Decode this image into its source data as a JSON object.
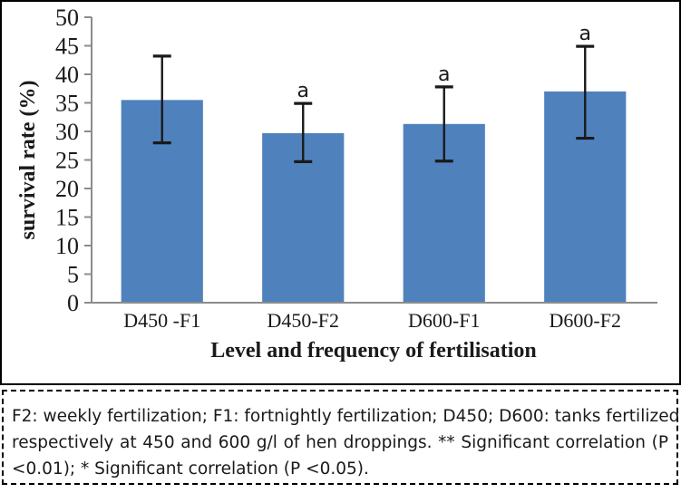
{
  "figure": {
    "chart_data": {
      "type": "bar",
      "title": "",
      "xlabel": "Level and frequency of fertilisation",
      "ylabel": "survival rate (%)",
      "categories": [
        "D450 -F1",
        "D450-F2",
        "D600-F1",
        "D600-F2"
      ],
      "values": [
        35.5,
        29.7,
        31.3,
        37.0
      ],
      "error_upper": [
        43.2,
        34.9,
        37.8,
        44.9
      ],
      "error_lower": [
        28.0,
        24.7,
        24.8,
        28.8
      ],
      "sig_letters": [
        "",
        "a",
        "a",
        "a"
      ],
      "ylim": [
        0,
        50
      ],
      "ytick_step": 5,
      "yticks": [
        0,
        5,
        10,
        15,
        20,
        25,
        30,
        35,
        40,
        45,
        50
      ],
      "grid": false,
      "legend": false,
      "bar_color": "#4f81bd",
      "axis_color": "#8c8c8c",
      "error_color": "#1a1a1a",
      "text_color": "#1a1a1a"
    }
  },
  "caption": {
    "lines": [
      "F2: weekly fertilization; F1: fortnightly fertilization; D450; D600: tanks fertilized",
      "respectively at 450 and 600 g/l of hen droppings. ** Significant correlation (P",
      "<0.01); * Significant correlation (P <0.05)."
    ]
  }
}
